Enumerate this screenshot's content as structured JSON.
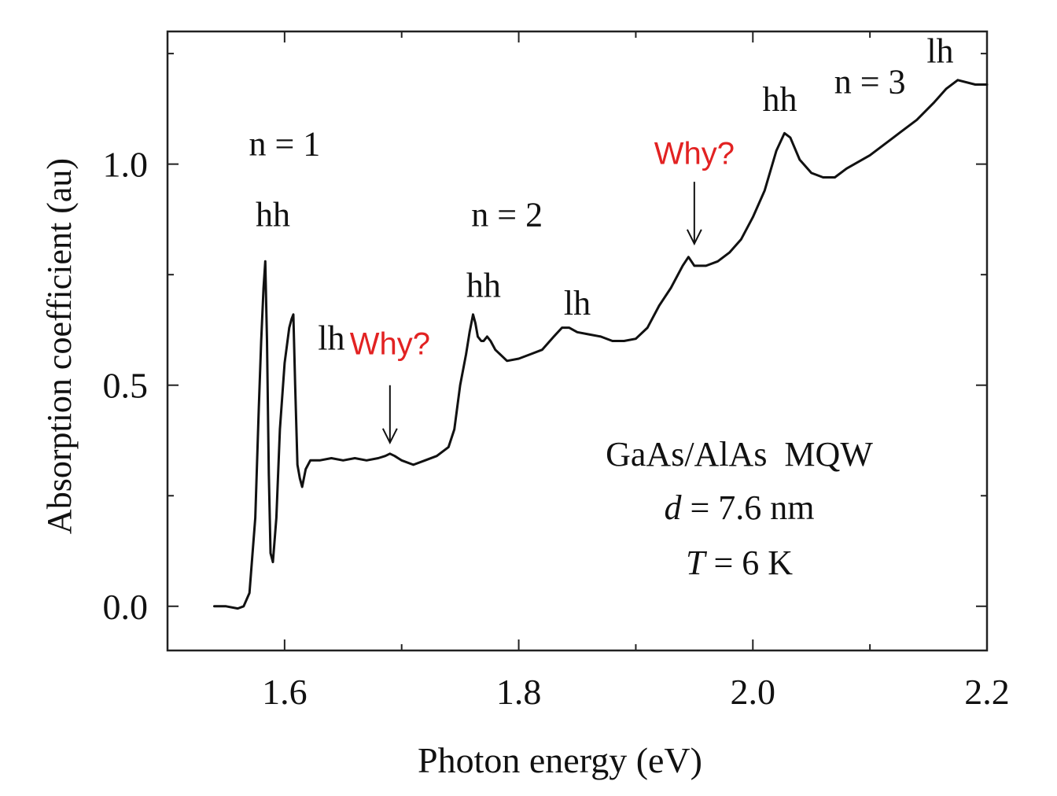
{
  "chart_data": {
    "type": "line",
    "xlabel": "Photon energy (eV)",
    "ylabel": "Absorption coefficient (au)",
    "xlim": [
      1.5,
      2.2
    ],
    "ylim": [
      -0.1,
      1.3
    ],
    "x_ticks": [
      "1.6",
      "1.8",
      "2.0",
      "2.2"
    ],
    "y_ticks": [
      "0.0",
      "0.5",
      "1.0"
    ],
    "grid": false,
    "series": [
      {
        "x": [
          1.54,
          1.55,
          1.56,
          1.565,
          1.57,
          1.575,
          1.578,
          1.58,
          1.582,
          1.5835,
          1.585,
          1.5865,
          1.588,
          1.59,
          1.593,
          1.596,
          1.6,
          1.604,
          1.606,
          1.6075,
          1.609,
          1.611,
          1.613,
          1.615,
          1.618,
          1.622,
          1.63,
          1.64,
          1.65,
          1.66,
          1.67,
          1.68,
          1.686,
          1.69,
          1.694,
          1.7,
          1.71,
          1.72,
          1.73,
          1.74,
          1.745,
          1.75,
          1.755,
          1.758,
          1.761,
          1.763,
          1.765,
          1.768,
          1.77,
          1.773,
          1.776,
          1.78,
          1.79,
          1.8,
          1.81,
          1.82,
          1.83,
          1.837,
          1.843,
          1.85,
          1.86,
          1.87,
          1.88,
          1.89,
          1.9,
          1.91,
          1.92,
          1.93,
          1.94,
          1.945,
          1.95,
          1.96,
          1.97,
          1.98,
          1.99,
          2.0,
          2.01,
          2.02,
          2.027,
          2.032,
          2.04,
          2.05,
          2.06,
          2.07,
          2.08,
          2.1,
          2.12,
          2.14,
          2.155,
          2.165,
          2.175,
          2.19,
          2.2
        ],
        "y": [
          0.0,
          0.0,
          -0.005,
          0.0,
          0.03,
          0.2,
          0.45,
          0.6,
          0.72,
          0.78,
          0.6,
          0.3,
          0.12,
          0.1,
          0.2,
          0.4,
          0.55,
          0.63,
          0.65,
          0.66,
          0.5,
          0.32,
          0.29,
          0.27,
          0.31,
          0.33,
          0.33,
          0.335,
          0.33,
          0.335,
          0.33,
          0.335,
          0.34,
          0.345,
          0.34,
          0.33,
          0.32,
          0.33,
          0.34,
          0.36,
          0.4,
          0.5,
          0.57,
          0.62,
          0.66,
          0.64,
          0.61,
          0.6,
          0.6,
          0.61,
          0.6,
          0.58,
          0.555,
          0.56,
          0.57,
          0.58,
          0.61,
          0.63,
          0.63,
          0.62,
          0.615,
          0.61,
          0.6,
          0.6,
          0.605,
          0.63,
          0.68,
          0.72,
          0.77,
          0.79,
          0.77,
          0.77,
          0.78,
          0.8,
          0.83,
          0.88,
          0.94,
          1.03,
          1.07,
          1.06,
          1.01,
          0.98,
          0.97,
          0.97,
          0.99,
          1.02,
          1.06,
          1.1,
          1.14,
          1.17,
          1.19,
          1.18,
          1.18
        ]
      }
    ],
    "annotations": [
      {
        "text": "n = 1",
        "x": 1.6,
        "y": 1.02,
        "color": "#111111"
      },
      {
        "text": "hh",
        "x": 1.59,
        "y": 0.86,
        "color": "#111111"
      },
      {
        "text": "lh",
        "x": 1.64,
        "y": 0.58,
        "color": "#111111"
      },
      {
        "text": "Why?",
        "x": 1.69,
        "y": 0.57,
        "color": "#e22222"
      },
      {
        "text": "n = 2",
        "x": 1.79,
        "y": 0.86,
        "color": "#111111"
      },
      {
        "text": "hh",
        "x": 1.77,
        "y": 0.7,
        "color": "#111111"
      },
      {
        "text": "lh",
        "x": 1.85,
        "y": 0.66,
        "color": "#111111"
      },
      {
        "text": "Why?",
        "x": 1.95,
        "y": 1.0,
        "color": "#e22222"
      },
      {
        "text": "hh",
        "x": 2.023,
        "y": 1.12,
        "color": "#111111"
      },
      {
        "text": "n = 3",
        "x": 2.1,
        "y": 1.16,
        "color": "#111111"
      },
      {
        "text": "lh",
        "x": 2.16,
        "y": 1.23,
        "color": "#111111"
      }
    ],
    "arrows": [
      {
        "x": 1.69,
        "y_from": 0.5,
        "y_to": 0.37
      },
      {
        "x": 1.95,
        "y_from": 0.96,
        "y_to": 0.82
      }
    ],
    "legend_box": {
      "line1": "GaAs/AlAs  MQW",
      "line2_var": "d",
      "line2_rest": " = 7.6 nm",
      "line3_var": "T",
      "line3_rest": " = 6 K"
    }
  }
}
